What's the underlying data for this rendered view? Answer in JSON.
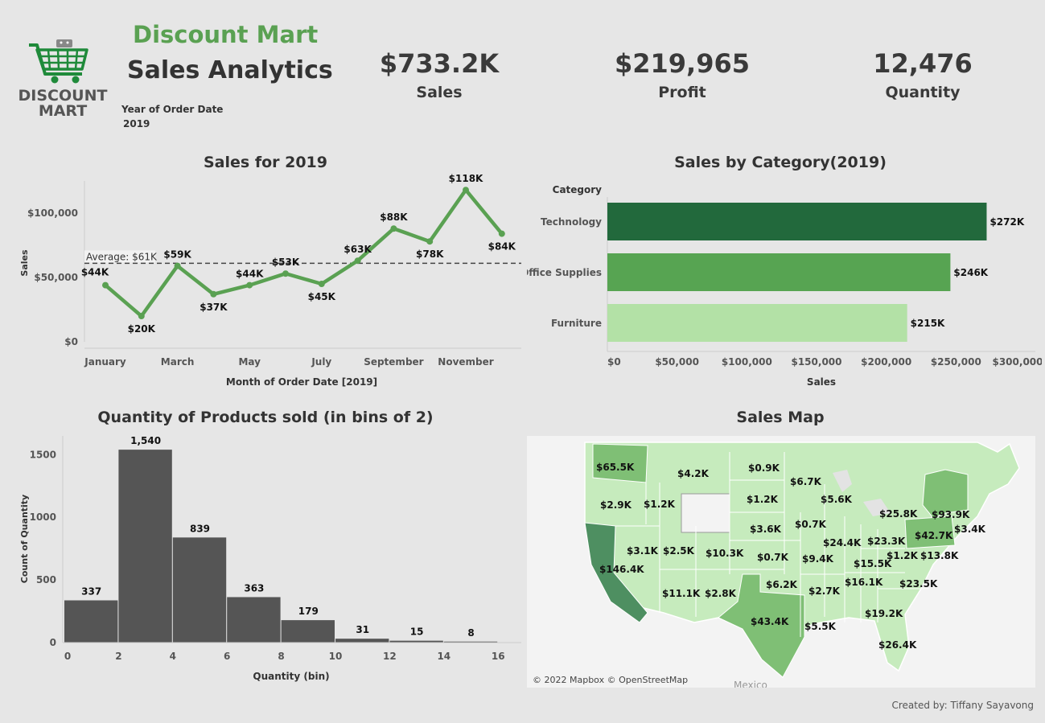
{
  "header": {
    "brand": "Discount Mart",
    "title": "Sales Analytics",
    "logo_line1": "DISCOUNT",
    "logo_line2": "MART",
    "filter_label": "Year of Order Date",
    "filter_value": "2019"
  },
  "kpis": [
    {
      "value": "$733.2K",
      "label": "Sales"
    },
    {
      "value": "$219,965",
      "label": "Profit"
    },
    {
      "value": "12,476",
      "label": "Quantity"
    }
  ],
  "colors": {
    "line": "#5aa152",
    "bar_technology": "#22693c",
    "bar_office": "#57a452",
    "bar_furniture": "#b3e1a6",
    "histogram": "#555555",
    "background": "#e6e6e6"
  },
  "chart_data": [
    {
      "type": "line",
      "title": "Sales for 2019",
      "xlabel": "Month of Order Date [2019]",
      "ylabel": "Sales",
      "x_tick_labels": [
        "January",
        "March",
        "May",
        "July",
        "September",
        "November"
      ],
      "y_tick_labels": [
        "$0",
        "$50,000",
        "$100,000"
      ],
      "ylim": [
        0,
        125000
      ],
      "average": 61000,
      "average_label": "Average: $61K",
      "series": [
        {
          "values": [
            44000,
            20000,
            59000,
            37000,
            44000,
            53000,
            45000,
            63000,
            88000,
            78000,
            118000,
            84000
          ],
          "labels": [
            "$44K",
            "$20K",
            "$59K",
            "$37K",
            "$44K",
            "$53K",
            "$45K",
            "$63K",
            "$88K",
            "$78K",
            "$118K",
            "$84K"
          ]
        }
      ]
    },
    {
      "type": "bar",
      "orientation": "horizontal",
      "title": "Sales by Category(2019)",
      "category_header": "Category",
      "categories": [
        "Technology",
        "Office Supplies",
        "Furniture"
      ],
      "values": [
        272000,
        246000,
        215000
      ],
      "labels": [
        "$272K",
        "$246K",
        "$215K"
      ],
      "xlabel": "Sales",
      "x_tick_labels": [
        "$0",
        "$50,000",
        "$100,000",
        "$150,000",
        "$200,000",
        "$250,000",
        "$300,000"
      ],
      "xlim": [
        0,
        300000
      ]
    },
    {
      "type": "bar",
      "title": "Quantity of Products sold (in bins of 2)",
      "xlabel": "Quantity (bin)",
      "ylabel": "Count of Quantity",
      "bins": [
        0,
        2,
        4,
        6,
        8,
        10,
        12,
        14
      ],
      "bin_width": 2,
      "values": [
        337,
        1540,
        839,
        363,
        179,
        31,
        15,
        8
      ],
      "labels": [
        "337",
        "1,540",
        "839",
        "363",
        "179",
        "31",
        "15",
        "8"
      ],
      "x_tick_labels": [
        "0",
        "2",
        "4",
        "6",
        "8",
        "10",
        "12",
        "14",
        "16"
      ],
      "y_tick_labels": [
        "0",
        "500",
        "1000",
        "1500"
      ],
      "ylim": [
        0,
        1650
      ]
    }
  ],
  "map": {
    "title": "Sales Map",
    "attribution": "© 2022 Mapbox © OpenStreetMap",
    "mexico_label": "Mexico",
    "states": [
      {
        "label": "$65.5K"
      },
      {
        "label": "$4.2K"
      },
      {
        "label": "$0.9K"
      },
      {
        "label": "$6.7K"
      },
      {
        "label": "$2.9K"
      },
      {
        "label": "$1.2K"
      },
      {
        "label": "$1.2K"
      },
      {
        "label": "$5.6K"
      },
      {
        "label": "$25.8K"
      },
      {
        "label": "$93.9K"
      },
      {
        "label": "$3.6K"
      },
      {
        "label": "$0.7K"
      },
      {
        "label": "$42.7K"
      },
      {
        "label": "$3.4K"
      },
      {
        "label": "$3.1K"
      },
      {
        "label": "$2.5K"
      },
      {
        "label": "$10.3K"
      },
      {
        "label": "$24.4K"
      },
      {
        "label": "$23.3K"
      },
      {
        "label": "$146.4K"
      },
      {
        "label": "$0.7K"
      },
      {
        "label": "$9.4K"
      },
      {
        "label": "$15.5K"
      },
      {
        "label": "$1.2K"
      },
      {
        "label": "$13.8K"
      },
      {
        "label": "$6.2K"
      },
      {
        "label": "$16.1K"
      },
      {
        "label": "$23.5K"
      },
      {
        "label": "$11.1K"
      },
      {
        "label": "$2.8K"
      },
      {
        "label": "$2.7K"
      },
      {
        "label": "$19.2K"
      },
      {
        "label": "$43.4K"
      },
      {
        "label": "$5.5K"
      },
      {
        "label": "$26.4K"
      }
    ]
  },
  "footer": {
    "credit": "Created by: Tiffany Sayavong"
  }
}
